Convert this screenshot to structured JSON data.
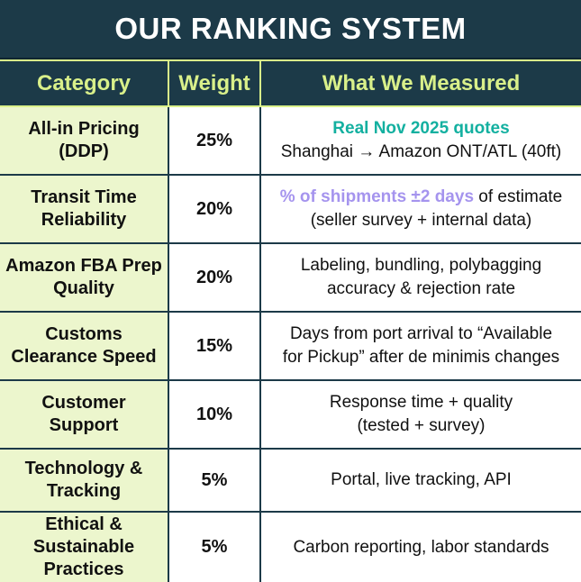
{
  "title": "OUR RANKING SYSTEM",
  "headers": {
    "category": "Category",
    "weight": "Weight",
    "measured": "What We Measured"
  },
  "rows": [
    {
      "category": "All-in Pricing (DDP)",
      "weight": "25%",
      "desc_highlight": "Real Nov 2025 quotes",
      "desc_line2": "Shanghai → Amazon ONT/ATL (40ft)"
    },
    {
      "category": "Transit Time Reliability",
      "weight": "20%",
      "desc_highlight": "% of shipments ±2 days",
      "desc_rest": " of estimate",
      "desc_line2": "(seller survey + internal data)"
    },
    {
      "category": "Amazon FBA Prep Quality",
      "weight": "20%",
      "desc_line1": "Labeling, bundling, polybagging",
      "desc_line2": "accuracy & rejection rate"
    },
    {
      "category": "Customs Clearance Speed",
      "weight": "15%",
      "desc_line1": "Days from port arrival to “Available",
      "desc_line2": "for Pickup” after de minimis changes"
    },
    {
      "category": "Customer Support",
      "weight": "10%",
      "desc_line1": "Response time + quality",
      "desc_line2": "(tested + survey)"
    },
    {
      "category": "Technology & Tracking",
      "weight": "5%",
      "desc_line1": "Portal, live tracking, API"
    },
    {
      "category": "Ethical & Sustainable Practices",
      "weight": "5%",
      "desc_line1": "Carbon reporting, labor standards"
    }
  ],
  "colors": {
    "navy": "#1c3a48",
    "header_text": "#d9f08a",
    "category_bg": "#ecf6cd",
    "teal_highlight": "#13b0a0",
    "purple_highlight": "#a594ee"
  }
}
